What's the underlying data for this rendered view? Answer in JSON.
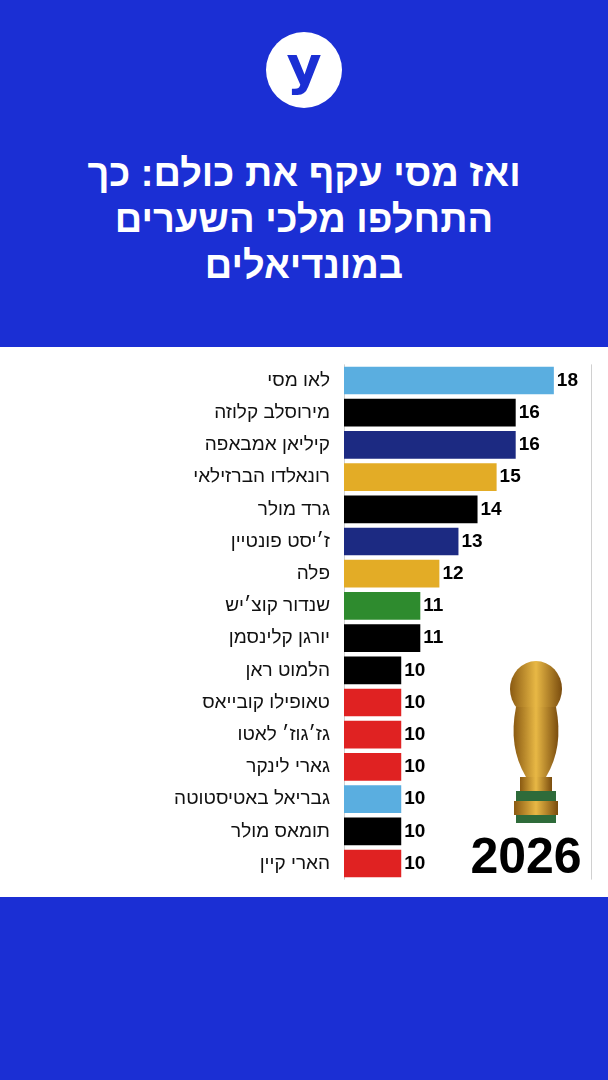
{
  "logo": "y",
  "chart_data": {
    "type": "bar",
    "orientation": "horizontal",
    "title": "ואז מסי עקף את כולם: כך התחלפו מלכי השערים במונדיאלים",
    "categories": [
      "לאו מסי",
      "מירוסלב קלוזה",
      "קיליאן אמבאפה",
      "רונאלדו הברזילאי",
      "גרד מולר",
      "ז׳יסט פונטיין",
      "פלה",
      "שנדור קוצ׳יש",
      "יורגן קלינסמן",
      "הלמוט ראן",
      "טאופילו קובייאס",
      "גז׳גוז׳ לאטו",
      "גארי לינקר",
      "גבריאל באטיסטוטה",
      "תומאס מולר",
      "הארי קיין"
    ],
    "values": [
      18,
      16,
      16,
      15,
      14,
      13,
      12,
      11,
      11,
      10,
      10,
      10,
      10,
      10,
      10,
      10
    ],
    "colors": [
      "#5aaee0",
      "#000000",
      "#1c2a82",
      "#e3ac26",
      "#000000",
      "#1c2a82",
      "#e3ac26",
      "#2e8b2e",
      "#000000",
      "#000000",
      "#e02222",
      "#e02222",
      "#e02222",
      "#5aaee0",
      "#000000",
      "#e02222"
    ],
    "xlim": [
      7,
      20
    ],
    "data_labels": true,
    "tick_labels": "y",
    "grid": false,
    "annotations": [
      "2026"
    ]
  }
}
